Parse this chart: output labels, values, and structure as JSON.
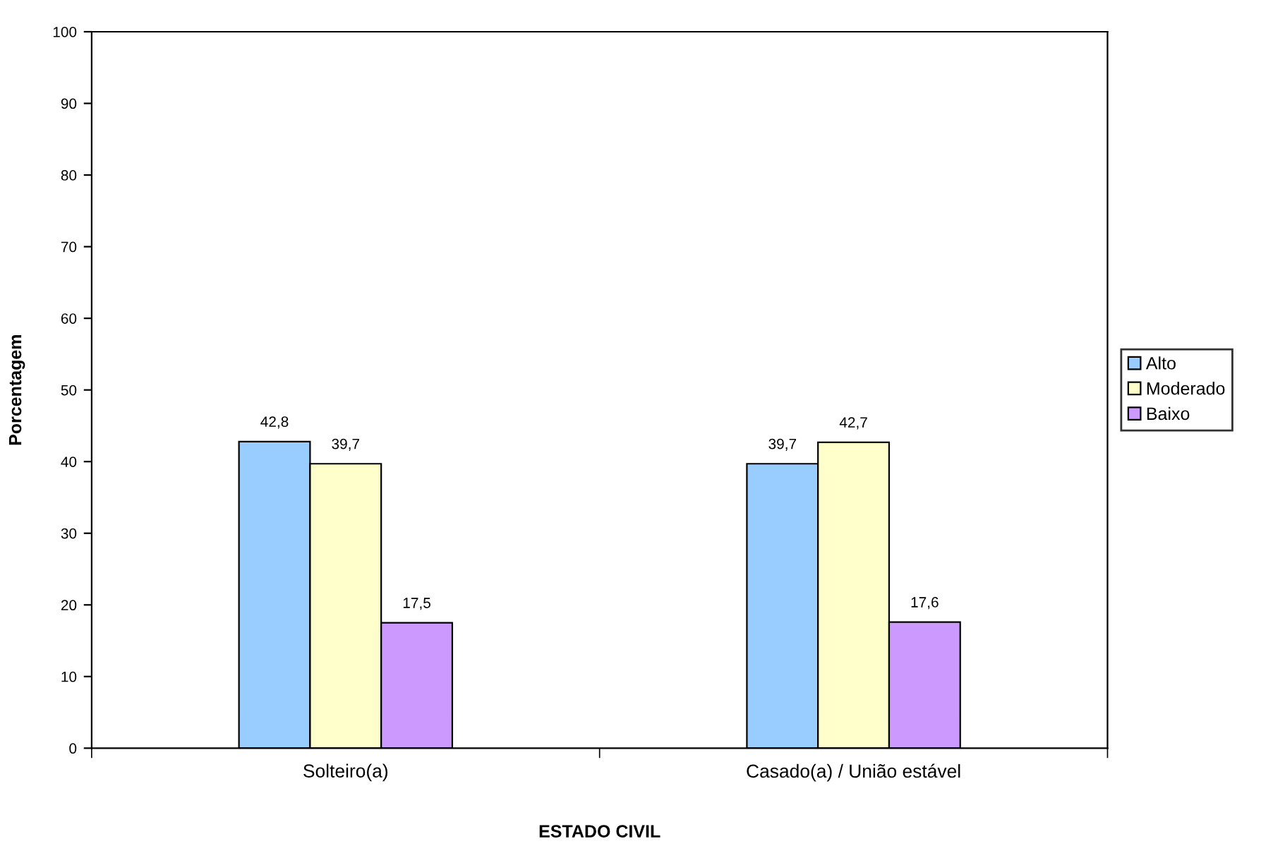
{
  "chart_data": {
    "type": "bar",
    "xlabel": "ESTADO CIVIL",
    "ylabel": "Porcentagem",
    "categories": [
      "Solteiro(a)",
      "Casado(a) / União estável"
    ],
    "series": [
      {
        "name": "Alto",
        "color": "#99ccff",
        "values": [
          42.8,
          39.7
        ],
        "value_labels": [
          "42,8",
          "39,7"
        ]
      },
      {
        "name": "Moderado",
        "color": "#ffffcc",
        "values": [
          39.7,
          42.7
        ],
        "value_labels": [
          "39,7",
          "42,7"
        ]
      },
      {
        "name": "Baixo",
        "color": "#cc99ff",
        "values": [
          17.5,
          17.6
        ],
        "value_labels": [
          "17,5",
          "17,6"
        ]
      }
    ],
    "ylim": [
      0,
      100
    ],
    "yticks": [
      0,
      10,
      20,
      30,
      40,
      50,
      60,
      70,
      80,
      90,
      100
    ],
    "legend": "right"
  }
}
